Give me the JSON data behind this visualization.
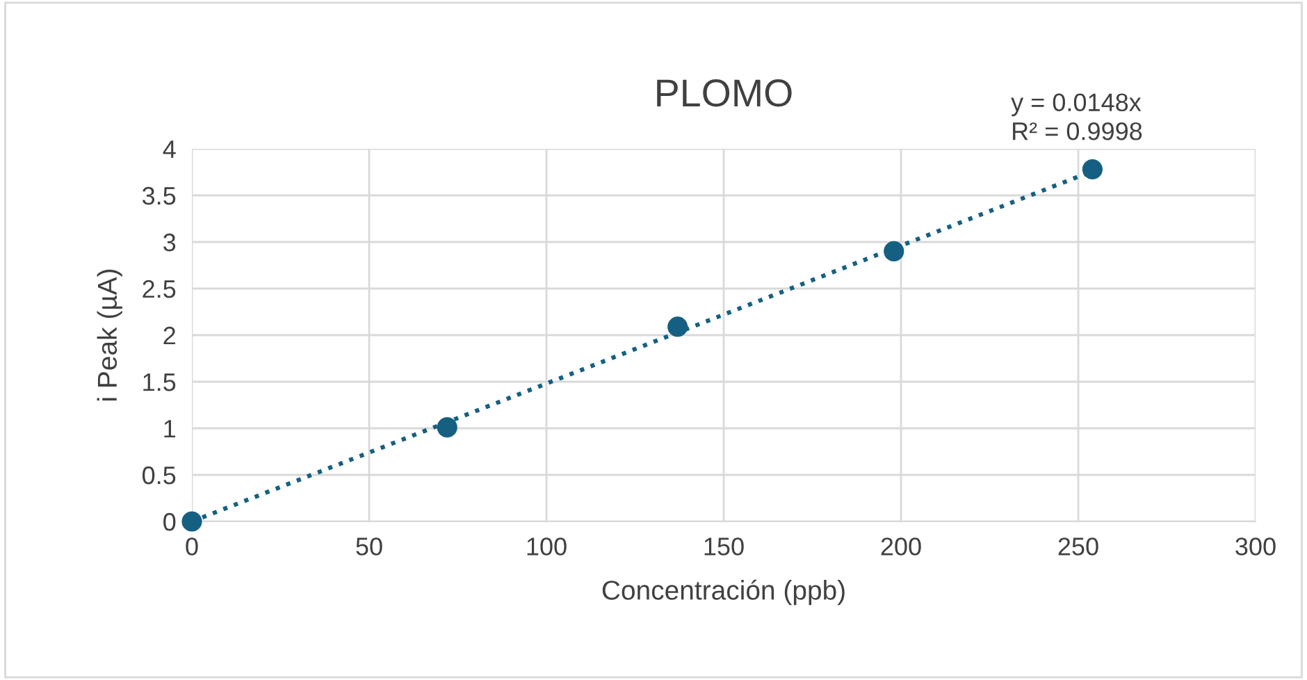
{
  "chart_data": {
    "type": "scatter",
    "title": "PLOMO",
    "xlabel": "Concentración (ppb)",
    "ylabel": "i Peak (µA)",
    "xlim": [
      0,
      300
    ],
    "xticks": [
      0,
      50,
      100,
      150,
      200,
      250,
      300
    ],
    "ylim": [
      0,
      4
    ],
    "yticks": [
      0,
      0.5,
      1,
      1.5,
      2,
      2.5,
      3,
      3.5,
      4
    ],
    "grid": true,
    "legend": false,
    "series": [
      {
        "marker": "circle",
        "color": "#156082",
        "x": [
          0,
          72,
          137,
          198,
          254
        ],
        "values": [
          0,
          1.01,
          2.09,
          2.9,
          3.78
        ]
      },
      {
        "type": "line",
        "color": "#156082",
        "line_style": "dotted",
        "x": [
          0,
          254
        ],
        "values": [
          0,
          3.76
        ]
      }
    ],
    "annotations": [
      "y = 0.0148x\nR² = 0.9998"
    ]
  }
}
